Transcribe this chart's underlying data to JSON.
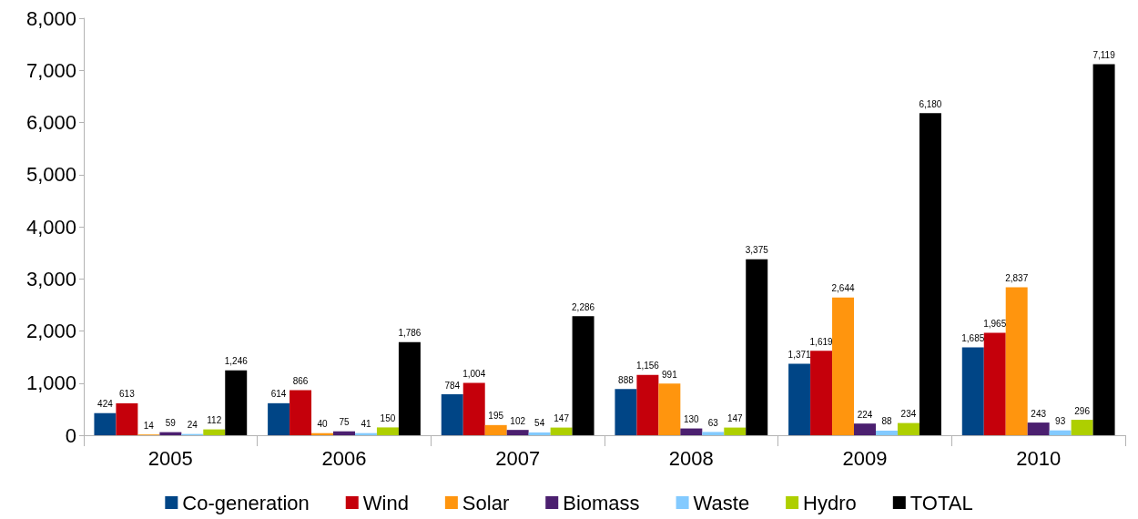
{
  "chart_data": {
    "type": "bar",
    "categories": [
      "2005",
      "2006",
      "2007",
      "2008",
      "2009",
      "2010"
    ],
    "series": [
      {
        "name": "Co-generation",
        "color": "#004586",
        "values": [
          424,
          614,
          784,
          888,
          1371,
          1685
        ],
        "value_labels": [
          "424",
          "614",
          "784",
          "888",
          "1,371",
          "1,685"
        ]
      },
      {
        "name": "Wind",
        "color": "#c5000b",
        "values": [
          613,
          866,
          1004,
          1156,
          1619,
          1965
        ],
        "value_labels": [
          "613",
          "866",
          "1,004",
          "1,156",
          "1,619",
          "1,965"
        ]
      },
      {
        "name": "Solar",
        "color": "#ff950e",
        "values": [
          14,
          40,
          195,
          991,
          2644,
          2837
        ],
        "value_labels": [
          "14",
          "40",
          "195",
          "991",
          "2,644",
          "2,837"
        ]
      },
      {
        "name": "Biomass",
        "color": "#4b1f6f",
        "values": [
          59,
          75,
          102,
          130,
          224,
          243
        ],
        "value_labels": [
          "59",
          "75",
          "102",
          "130",
          "224",
          "243"
        ]
      },
      {
        "name": "Waste",
        "color": "#83caff",
        "values": [
          24,
          41,
          54,
          63,
          88,
          93
        ],
        "value_labels": [
          "24",
          "41",
          "54",
          "63",
          "88",
          "93"
        ]
      },
      {
        "name": "Hydro",
        "color": "#aecf00",
        "values": [
          112,
          150,
          147,
          147,
          234,
          296
        ],
        "value_labels": [
          "112",
          "150",
          "147",
          "147",
          "234",
          "296"
        ]
      },
      {
        "name": "TOTAL",
        "color": "#000000",
        "values": [
          1246,
          1786,
          2286,
          3375,
          6180,
          7119
        ],
        "value_labels": [
          "1,246",
          "1,786",
          "2,286",
          "3,375",
          "6,180",
          "7,119"
        ]
      }
    ],
    "ylim": [
      0,
      8000
    ],
    "yticks": [
      {
        "value": 0,
        "label": "0"
      },
      {
        "value": 1000,
        "label": "1,000"
      },
      {
        "value": 2000,
        "label": "2,000"
      },
      {
        "value": 3000,
        "label": "3,000"
      },
      {
        "value": 4000,
        "label": "4,000"
      },
      {
        "value": 5000,
        "label": "5,000"
      },
      {
        "value": 6000,
        "label": "6,000"
      },
      {
        "value": 7000,
        "label": "7,000"
      },
      {
        "value": 8000,
        "label": "8,000"
      }
    ],
    "grid": false,
    "legend": "bottom"
  }
}
